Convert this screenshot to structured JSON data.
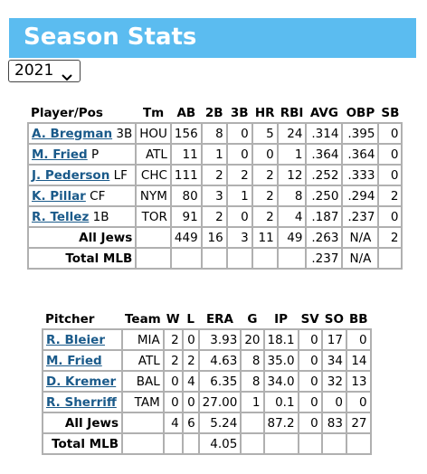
{
  "page": {
    "title": "Season Stats"
  },
  "year_select": {
    "value": "2021"
  },
  "batting": {
    "headers": [
      "Player/Pos",
      "Tm",
      "AB",
      "2B",
      "3B",
      "HR",
      "RBI",
      "AVG",
      "OBP",
      "SB"
    ],
    "rows": [
      {
        "name": "A. Bregman",
        "pos": "3B",
        "tm": "HOU",
        "ab": "156",
        "d": "8",
        "t": "0",
        "hr": "5",
        "rbi": "24",
        "avg": ".314",
        "obp": ".395",
        "sb": "0"
      },
      {
        "name": "M. Fried",
        "pos": "P",
        "tm": "ATL",
        "ab": "11",
        "d": "1",
        "t": "0",
        "hr": "0",
        "rbi": "1",
        "avg": ".364",
        "obp": ".364",
        "sb": "0"
      },
      {
        "name": "J. Pederson",
        "pos": "LF",
        "tm": "CHC",
        "ab": "111",
        "d": "2",
        "t": "2",
        "hr": "2",
        "rbi": "12",
        "avg": ".252",
        "obp": ".333",
        "sb": "0"
      },
      {
        "name": "K. Pillar",
        "pos": "CF",
        "tm": "NYM",
        "ab": "80",
        "d": "3",
        "t": "1",
        "hr": "2",
        "rbi": "8",
        "avg": ".250",
        "obp": ".294",
        "sb": "2"
      },
      {
        "name": "R. Tellez",
        "pos": "1B",
        "tm": "TOR",
        "ab": "91",
        "d": "2",
        "t": "0",
        "hr": "2",
        "rbi": "4",
        "avg": ".187",
        "obp": ".237",
        "sb": "0"
      }
    ],
    "all_jews": {
      "label": "All Jews",
      "ab": "449",
      "d": "16",
      "t": "3",
      "hr": "11",
      "rbi": "49",
      "avg": ".263",
      "obp": "N/A",
      "sb": "2"
    },
    "total_mlb": {
      "label": "Total MLB",
      "avg": ".237",
      "obp": "N/A"
    }
  },
  "pitching": {
    "headers": [
      "Pitcher",
      "Team",
      "W",
      "L",
      "ERA",
      "G",
      "IP",
      "SV",
      "SO",
      "BB"
    ],
    "rows": [
      {
        "name": "R. Bleier",
        "team": "MIA",
        "w": "2",
        "l": "0",
        "era": "3.93",
        "g": "20",
        "ip": "18.1",
        "sv": "0",
        "so": "17",
        "bb": "0"
      },
      {
        "name": "M. Fried",
        "team": "ATL",
        "w": "2",
        "l": "2",
        "era": "4.63",
        "g": "8",
        "ip": "35.0",
        "sv": "0",
        "so": "34",
        "bb": "14"
      },
      {
        "name": "D. Kremer",
        "team": "BAL",
        "w": "0",
        "l": "4",
        "era": "6.35",
        "g": "8",
        "ip": "34.0",
        "sv": "0",
        "so": "32",
        "bb": "13"
      },
      {
        "name": "R. Sherriff",
        "team": "TAM",
        "w": "0",
        "l": "0",
        "era": "27.00",
        "g": "1",
        "ip": "0.1",
        "sv": "0",
        "so": "0",
        "bb": "0"
      }
    ],
    "all_jews": {
      "label": "All Jews",
      "w": "4",
      "l": "6",
      "era": "5.24",
      "ip": "87.2",
      "sv": "0",
      "so": "83",
      "bb": "27"
    },
    "total_mlb": {
      "label": "Total MLB",
      "era": "4.05"
    }
  }
}
